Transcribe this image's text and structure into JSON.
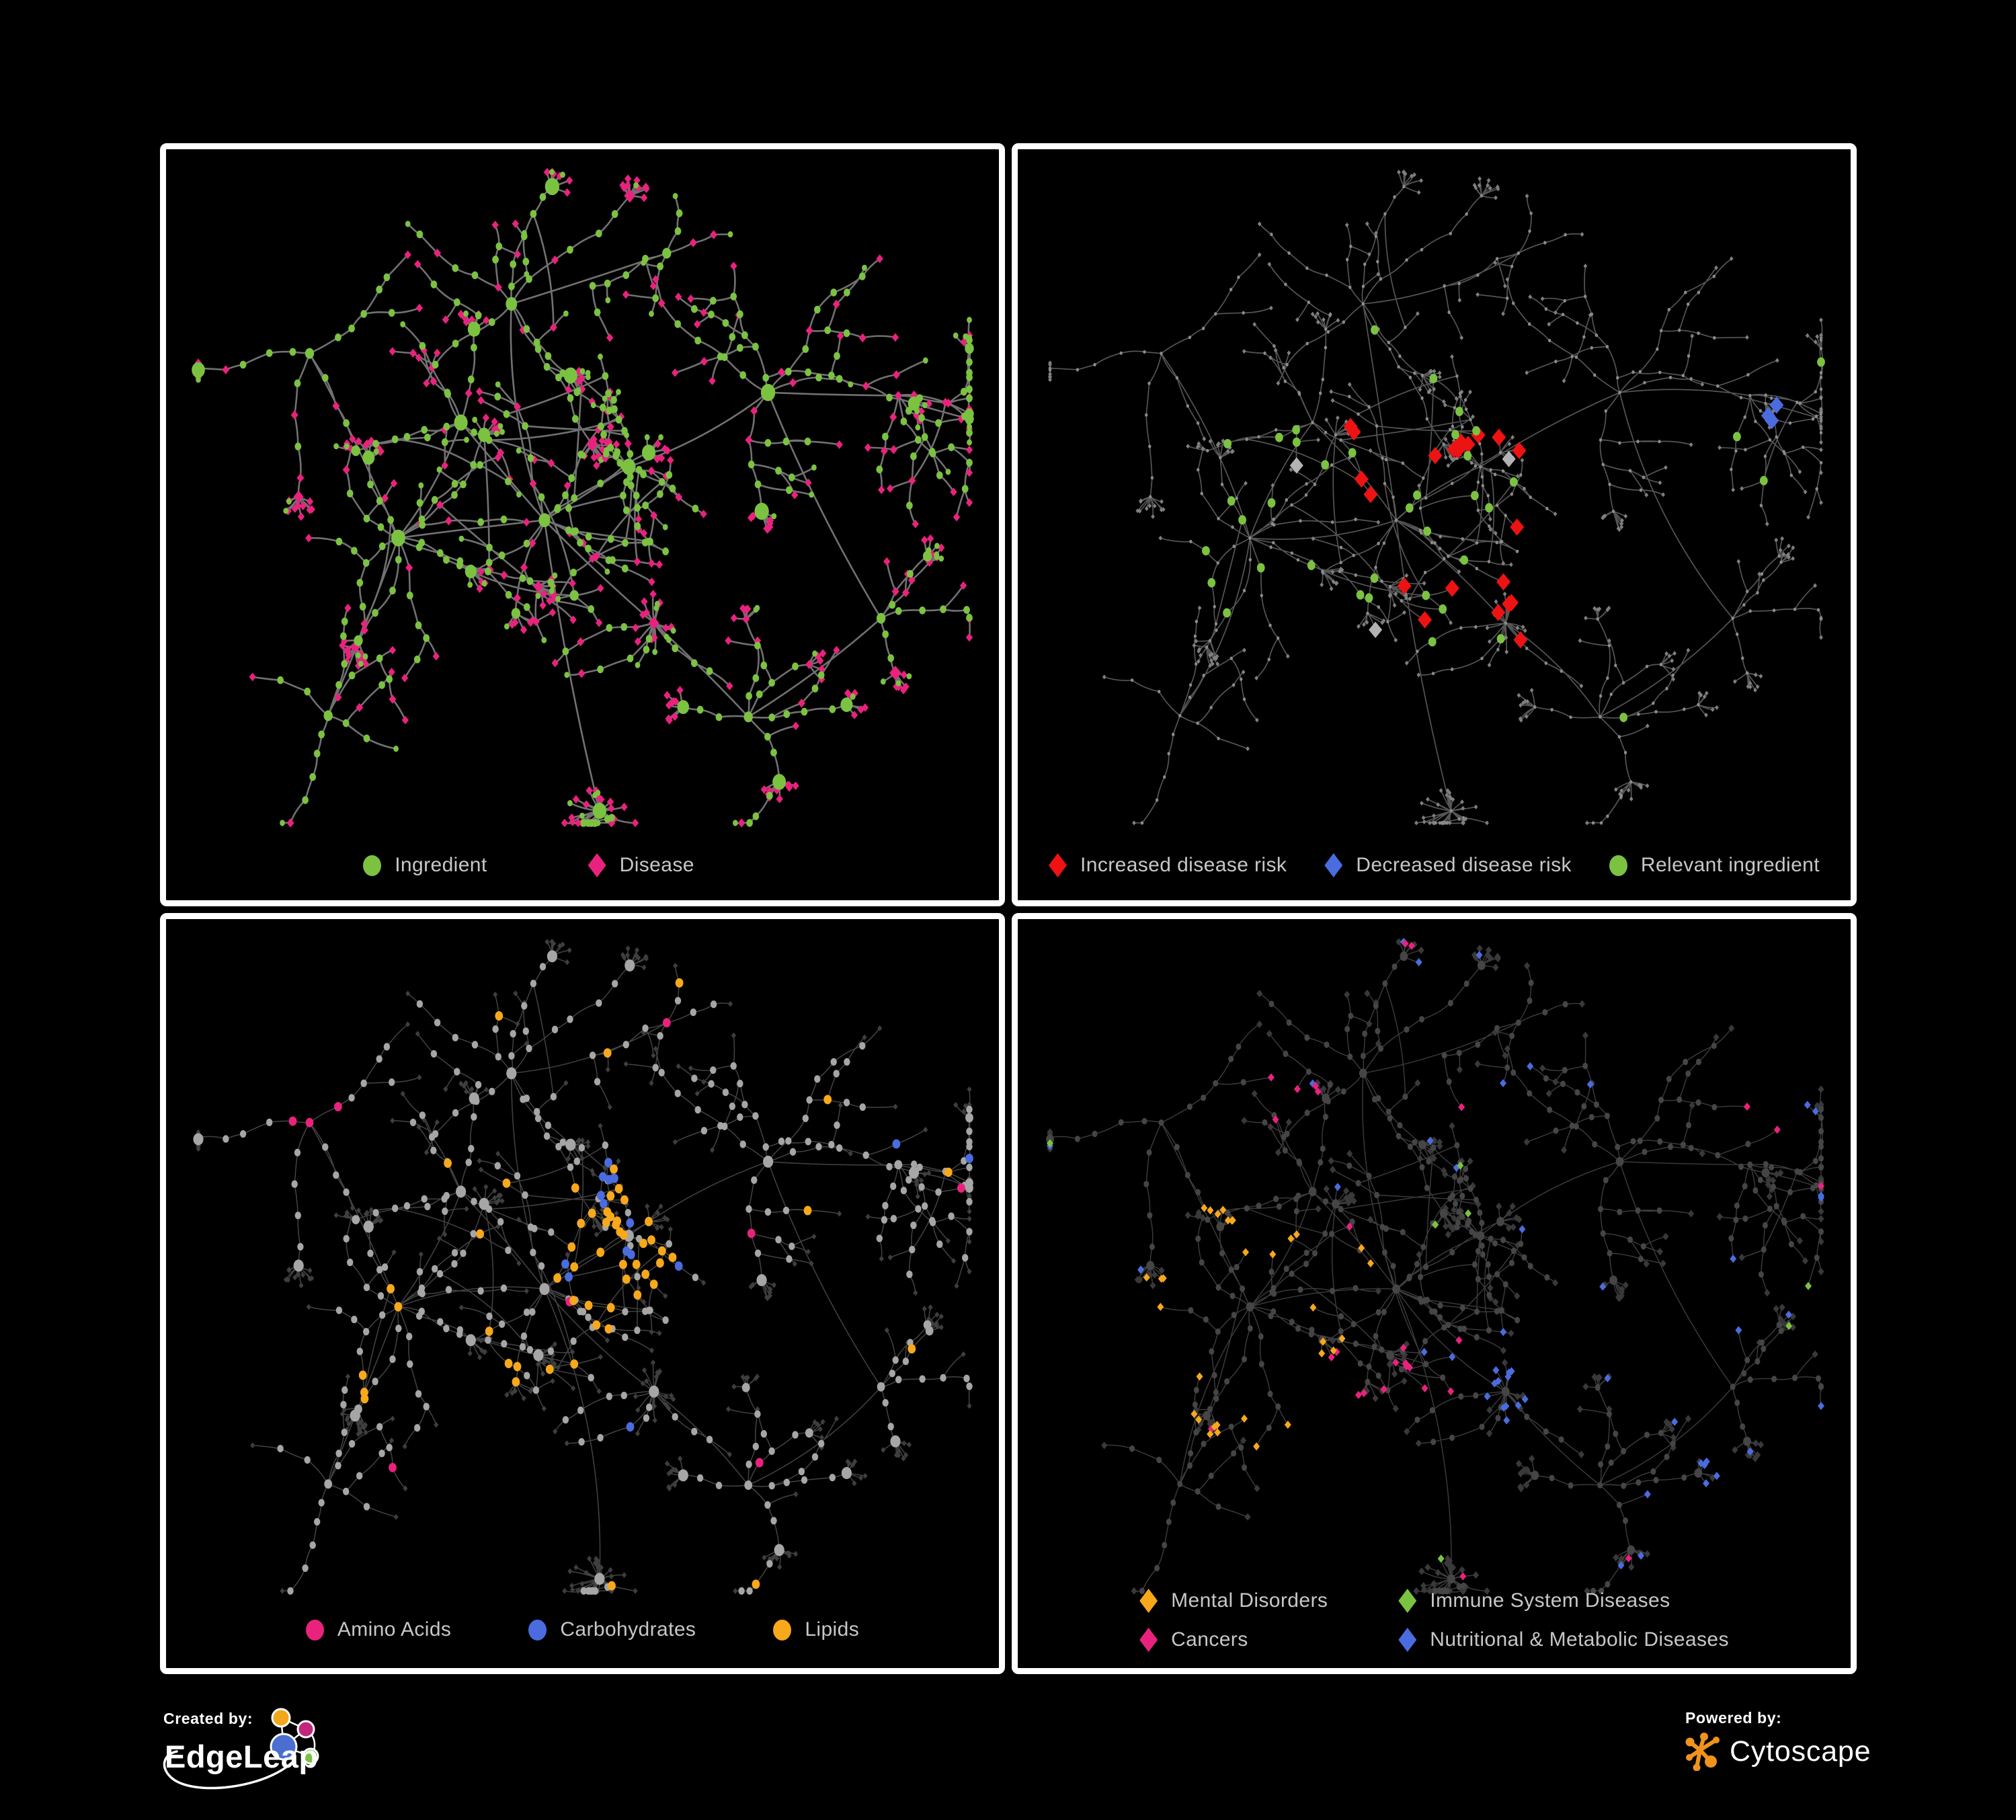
{
  "page": {
    "background": "#000000",
    "panel_border": "#ffffff"
  },
  "palette": {
    "green": "#7cc241",
    "pink": "#e9227e",
    "red": "#ed1313",
    "blue": "#4a6cdf",
    "orange": "#f7a81b",
    "gray_highlight": "#b3b3b3",
    "tr_node": "#8b8b8b",
    "tr_leaf": "#7f7f7f",
    "bl_node": "#a6a6a6",
    "bl_leaf": "#3e3e3e",
    "br_node": "#454545",
    "br_leaf": "#393939",
    "legend_text": "#c7c7c7"
  },
  "panels": [
    {
      "id": "ingredient-disease",
      "legend": {
        "items": [
          {
            "label": "Ingredient",
            "shape": "circle",
            "color": "#7cc241"
          },
          {
            "label": "Disease",
            "shape": "diamond",
            "color": "#e9227e"
          }
        ]
      },
      "network": {
        "type": "node-link",
        "seed": 11,
        "edge": {
          "color": "#7b7b7b",
          "width": 2.6,
          "opacity": 0.92
        },
        "node_categories": [
          {
            "name": "Ingredient",
            "shape": "circle",
            "color": "#7cc241"
          },
          {
            "name": "Disease",
            "shape": "diamond",
            "color": "#e9227e"
          }
        ]
      }
    },
    {
      "id": "disease-risk",
      "legend": {
        "items": [
          {
            "label": "Increased disease risk",
            "shape": "diamond",
            "color": "#ed1313"
          },
          {
            "label": "Decreased disease risk",
            "shape": "diamond",
            "color": "#4a6cdf"
          },
          {
            "label": "Relevant ingredient",
            "shape": "circle",
            "color": "#7cc241"
          }
        ]
      },
      "network": {
        "type": "node-link",
        "seed": 23,
        "edge": {
          "color": "#5e5e5e",
          "width": 1.7,
          "opacity": 0.9
        },
        "node_categories": [
          {
            "name": "Increased disease risk",
            "shape": "diamond",
            "color": "#ed1313"
          },
          {
            "name": "Decreased disease risk",
            "shape": "diamond",
            "color": "#4a6cdf"
          },
          {
            "name": "Neutral disease",
            "shape": "diamond",
            "color": "#b3b3b3"
          },
          {
            "name": "Relevant ingredient",
            "shape": "circle",
            "color": "#7cc241"
          },
          {
            "name": "Other node",
            "shape": "dot",
            "color": "#8b8b8b"
          }
        ]
      }
    },
    {
      "id": "nutrient-classes",
      "legend": {
        "items": [
          {
            "label": "Amino Acids",
            "shape": "circle",
            "color": "#e9227e"
          },
          {
            "label": "Carbohydrates",
            "shape": "circle",
            "color": "#4a6cdf"
          },
          {
            "label": "Lipids",
            "shape": "circle",
            "color": "#f7a81b"
          }
        ]
      },
      "network": {
        "type": "node-link",
        "seed": 37,
        "edge": {
          "color": "#c4c4c4",
          "width": 1.5,
          "opacity": 0.34
        },
        "node_categories": [
          {
            "name": "Amino Acids",
            "shape": "circle",
            "color": "#e9227e"
          },
          {
            "name": "Carbohydrates",
            "shape": "circle",
            "color": "#4a6cdf"
          },
          {
            "name": "Lipids",
            "shape": "circle",
            "color": "#f7a81b"
          },
          {
            "name": "Other ingredient",
            "shape": "circle",
            "color": "#a6a6a6"
          },
          {
            "name": "Disease",
            "shape": "diamond",
            "color": "#3e3e3e"
          }
        ]
      }
    },
    {
      "id": "disease-classes",
      "legend": {
        "items": [
          {
            "label": "Mental Disorders",
            "shape": "diamond",
            "color": "#f7a81b"
          },
          {
            "label": "Immune System Diseases",
            "shape": "diamond",
            "color": "#7cc241"
          },
          {
            "label": "Cancers",
            "shape": "diamond",
            "color": "#e9227e"
          },
          {
            "label": "Nutritional & Metabolic Diseases",
            "shape": "diamond",
            "color": "#4a6cdf"
          }
        ]
      },
      "network": {
        "type": "node-link",
        "seed": 53,
        "edge": {
          "color": "#999999",
          "width": 1.4,
          "opacity": 0.4
        },
        "node_categories": [
          {
            "name": "Mental Disorders",
            "shape": "diamond",
            "color": "#f7a81b"
          },
          {
            "name": "Immune System Diseases",
            "shape": "diamond",
            "color": "#7cc241"
          },
          {
            "name": "Cancers",
            "shape": "diamond",
            "color": "#e9227e"
          },
          {
            "name": "Nutritional & Metabolic Diseases",
            "shape": "diamond",
            "color": "#4a6cdf"
          },
          {
            "name": "Other disease",
            "shape": "diamond",
            "color": "#393939"
          },
          {
            "name": "Ingredient",
            "shape": "circle",
            "color": "#454545"
          }
        ]
      }
    }
  ],
  "network_layout": {
    "seed": 1337,
    "hubs": [
      {
        "f": [
          0.46,
          0.5
        ],
        "b": 9,
        "s": 4,
        "burst": 0.3
      },
      {
        "f": [
          0.55,
          0.42
        ],
        "b": 8,
        "s": 3,
        "burst": 0.3,
        "step": 21
      },
      {
        "f": [
          0.28,
          0.52
        ],
        "b": 10,
        "s": 4,
        "burst": 0.4
      },
      {
        "f": [
          0.52,
          0.88
        ],
        "b": 3,
        "s": 2,
        "star": 26
      },
      {
        "f": [
          0.585,
          0.63
        ],
        "b": 4,
        "s": 2,
        "star": 18
      },
      {
        "f": [
          0.72,
          0.33
        ],
        "b": 5,
        "s": 4,
        "burst": 0.5
      },
      {
        "f": [
          0.88,
          0.33
        ],
        "b": 5,
        "s": 3,
        "burst": 0.55
      },
      {
        "f": [
          0.42,
          0.2
        ],
        "b": 6,
        "s": 4,
        "burst": 0.45
      },
      {
        "f": [
          0.6,
          0.13
        ],
        "b": 4,
        "s": 3,
        "burst": 0.5
      },
      {
        "f": [
          0.17,
          0.28
        ],
        "b": 4,
        "s": 4,
        "burst": 0.35
      },
      {
        "f": [
          0.2,
          0.76
        ],
        "b": 5,
        "s": 3,
        "burst": 0.5
      },
      {
        "f": [
          0.7,
          0.76
        ],
        "b": 5,
        "s": 3,
        "burst": 0.55
      },
      {
        "f": [
          0.86,
          0.62
        ],
        "b": 4,
        "s": 3,
        "burst": 0.5
      },
      {
        "f": [
          0.35,
          0.37
        ],
        "b": 6,
        "s": 3,
        "burst": 0.3
      }
    ],
    "links": [
      [
        0,
        1
      ],
      [
        0,
        2
      ],
      [
        0,
        3
      ],
      [
        0,
        4
      ],
      [
        1,
        5
      ],
      [
        5,
        6
      ],
      [
        0,
        7
      ],
      [
        7,
        8
      ],
      [
        2,
        9
      ],
      [
        2,
        10
      ],
      [
        0,
        13
      ],
      [
        2,
        13
      ],
      [
        4,
        11
      ],
      [
        5,
        12
      ],
      [
        11,
        12
      ]
    ]
  },
  "footer": {
    "created_by": {
      "label": "Created by:",
      "brand": "EdgeLeap"
    },
    "powered_by": {
      "label": "Powered by:",
      "brand": "Cytoscape"
    }
  }
}
